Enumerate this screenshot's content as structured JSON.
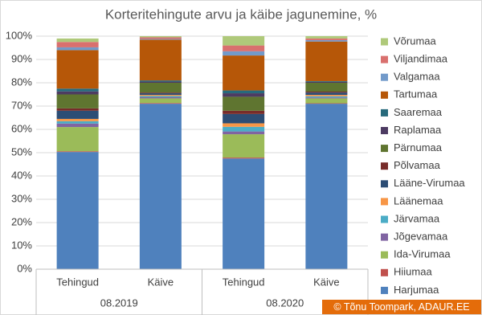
{
  "chart_data": {
    "type": "stacked-bar",
    "title": "Korteritehingute arvu ja käibe jagunemine, %",
    "categories": [
      "Tehingud",
      "Käive",
      "Tehingud",
      "Käive"
    ],
    "groups": [
      "08.2019",
      "08.2020"
    ],
    "ylim": [
      0,
      100
    ],
    "yticks": [
      {
        "value": 0,
        "label": "0%"
      },
      {
        "value": 10,
        "label": "10%"
      },
      {
        "value": 20,
        "label": "20%"
      },
      {
        "value": 30,
        "label": "30%"
      },
      {
        "value": 40,
        "label": "40%"
      },
      {
        "value": 50,
        "label": "50%"
      },
      {
        "value": 60,
        "label": "60%"
      },
      {
        "value": 70,
        "label": "70%"
      },
      {
        "value": 80,
        "label": "80%"
      },
      {
        "value": 90,
        "label": "90%"
      },
      {
        "value": 100,
        "label": "100%"
      }
    ],
    "grid": true,
    "legend": "right",
    "series": [
      {
        "name": "Harjumaa",
        "color": "#4f81bd",
        "values": [
          50.3,
          71,
          47.5,
          71
        ]
      },
      {
        "name": "Hiiumaa",
        "color": "#c0504d",
        "values": [
          0.3,
          0.3,
          0.4,
          0.2
        ]
      },
      {
        "name": "Ida-Virumaa",
        "color": "#9bbb59",
        "values": [
          10.4,
          2,
          10,
          2.1
        ]
      },
      {
        "name": "Jõgevamaa",
        "color": "#8064a2",
        "values": [
          1.5,
          0.5,
          1.2,
          0.4
        ]
      },
      {
        "name": "Järvamaa",
        "color": "#4bacc6",
        "values": [
          1,
          0.5,
          2,
          0.5
        ]
      },
      {
        "name": "Läänemaa",
        "color": "#f79646",
        "values": [
          1,
          0.5,
          1.5,
          0.6
        ]
      },
      {
        "name": "Lääne-Virumaa",
        "color": "#2c4d75",
        "values": [
          3.5,
          0.7,
          4,
          1
        ]
      },
      {
        "name": "Põlvamaa",
        "color": "#772c2a",
        "values": [
          1,
          0.3,
          1.4,
          0.4
        ]
      },
      {
        "name": "Pärnumaa",
        "color": "#5f7530",
        "values": [
          6,
          4.2,
          6,
          3.8
        ]
      },
      {
        "name": "Raplamaa",
        "color": "#4d3b62",
        "values": [
          1.3,
          0.5,
          1.5,
          0.4
        ]
      },
      {
        "name": "Saaremaa",
        "color": "#276a7c",
        "values": [
          1.2,
          0.5,
          1.2,
          0.3
        ]
      },
      {
        "name": "Tartumaa",
        "color": "#b65708",
        "values": [
          16.5,
          17.5,
          15,
          17
        ]
      },
      {
        "name": "Valgamaa",
        "color": "#729aca",
        "values": [
          1.2,
          0.3,
          1.8,
          0.6
        ]
      },
      {
        "name": "Viljandimaa",
        "color": "#d9706e",
        "values": [
          2.3,
          0.7,
          2.5,
          0.7
        ]
      },
      {
        "name": "Võrumaa",
        "color": "#afc97a",
        "values": [
          1.5,
          0.5,
          4,
          1
        ]
      }
    ],
    "source": "© Tõnu Toompark, ADAUR.EE"
  }
}
